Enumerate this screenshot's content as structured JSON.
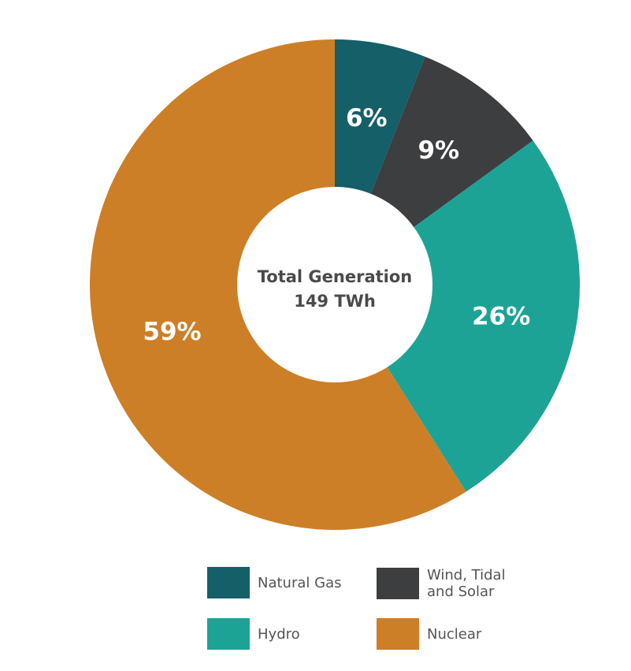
{
  "chart_data": {
    "type": "pie",
    "variant": "donut",
    "title": "",
    "center_text": [
      "Total Generation",
      "149 TWh"
    ],
    "slices": [
      {
        "name": "Natural Gas",
        "value": 6,
        "label": "6%",
        "color": "#145f68"
      },
      {
        "name": "Wind, Tidal and Solar",
        "value": 9,
        "label": "9%",
        "color": "#3d3e40"
      },
      {
        "name": "Hydro",
        "value": 26,
        "label": "26%",
        "color": "#1da396"
      },
      {
        "name": "Nuclear",
        "value": 59,
        "label": "59%",
        "color": "#cd7f27"
      }
    ],
    "legend_placement": "bottom",
    "legend": [
      {
        "label_lines": [
          "Natural Gas"
        ],
        "color": "#145f68"
      },
      {
        "label_lines": [
          "Wind, Tidal",
          "and Solar"
        ],
        "color": "#3d3e40"
      },
      {
        "label_lines": [
          "Hydro"
        ],
        "color": "#1da396"
      },
      {
        "label_lines": [
          "Nuclear"
        ],
        "color": "#cd7f27"
      }
    ]
  }
}
